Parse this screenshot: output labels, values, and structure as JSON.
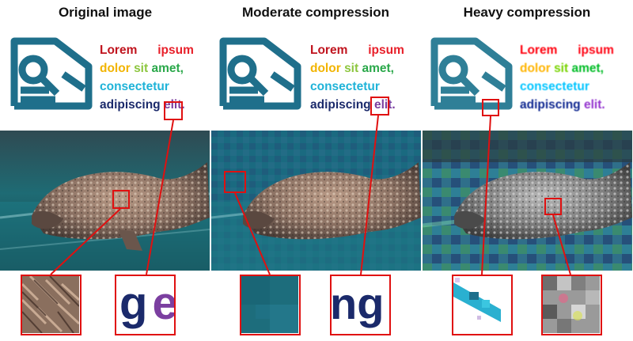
{
  "columns": [
    {
      "title": "Original image"
    },
    {
      "title": "Moderate compression"
    },
    {
      "title": "Heavy compression"
    }
  ],
  "sample_text": {
    "w1": "Lorem",
    "w2": "ipsum",
    "w3": "dolor",
    "w4": "sit",
    "w5": "amet,",
    "w6": "consectetur",
    "w7": "adipiscing",
    "w8": "elit."
  },
  "zoom_text": {
    "left": "g",
    "right": "e",
    "mid": "ng"
  },
  "colors": {
    "highlight_border": "#e01010",
    "logo": "#1f6f8b",
    "lorem": "#c0141e",
    "ipsum": "#e8202a",
    "dolor": "#f2b400",
    "sit": "#8dc63f",
    "amet": "#2aa84a",
    "consectetur": "#1fb3d8",
    "adipiscing": "#1b2a6b",
    "elit": "#7b3fa0"
  }
}
